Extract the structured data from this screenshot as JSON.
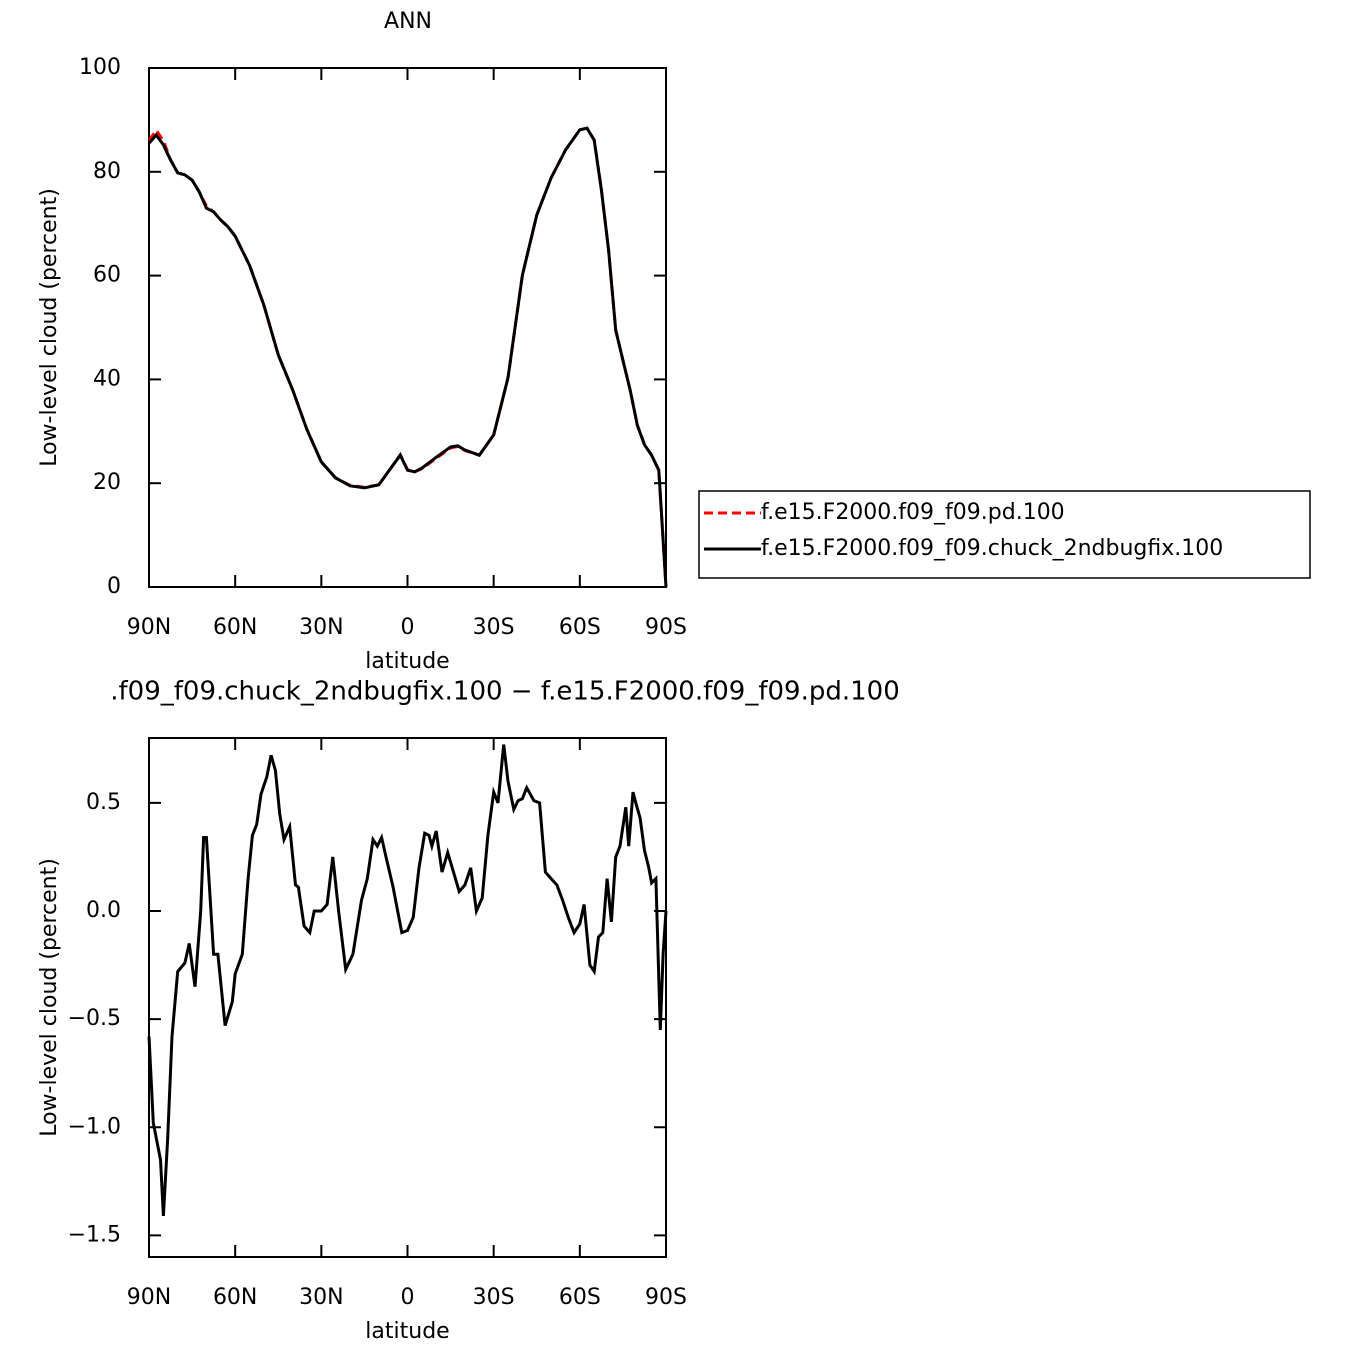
{
  "chart_data": [
    {
      "type": "line",
      "title": "ANN",
      "xlabel": "latitude",
      "ylabel": "Low-level cloud (percent)",
      "xlim": [
        90,
        -90
      ],
      "ylim": [
        0,
        100
      ],
      "xticks": [
        {
          "value": 90,
          "label": "90N"
        },
        {
          "value": 60,
          "label": "60N"
        },
        {
          "value": 30,
          "label": "30N"
        },
        0,
        {
          "value": -30,
          "label": "30S"
        },
        {
          "value": -60,
          "label": "60S"
        },
        {
          "value": -90,
          "label": "90S"
        }
      ],
      "yticks": [
        0,
        20,
        40,
        60,
        80,
        100
      ],
      "legend": "outside-right",
      "x": [
        90,
        87.5,
        85,
        82.5,
        80,
        77.5,
        75,
        72.5,
        70,
        67.5,
        65,
        62.5,
        60,
        55,
        50,
        45,
        40,
        35,
        30,
        25,
        20,
        15,
        10,
        5,
        2.5,
        0,
        -2.5,
        -5,
        -10,
        -15,
        -17.5,
        -20,
        -25,
        -30,
        -35,
        -40,
        -45,
        -50,
        -55,
        -60,
        -62.5,
        -65,
        -67.5,
        -70,
        -72.5,
        -75,
        -77.5,
        -80,
        -82.5,
        -85,
        -87.5,
        -90
      ],
      "series": [
        {
          "name": "f.e15.F2000.f09_f09.pd.100",
          "color": "#ff0000",
          "dash": true,
          "values": [
            86,
            88,
            86,
            82.3,
            79.8,
            79.4,
            78.4,
            76.1,
            73.4,
            72.3,
            70.7,
            69.4,
            67.6,
            62,
            54.3,
            44.7,
            38,
            30.3,
            24.1,
            21,
            19.6,
            19.2,
            19.7,
            23.5,
            25.5,
            22.6,
            22.2,
            22.8,
            24.8,
            26.8,
            27.1,
            26.3,
            25.4,
            29.3,
            40.3,
            60.1,
            71.7,
            78.8,
            84.2,
            88.1,
            88.4,
            86.1,
            76.5,
            64.9,
            49.5,
            43.7,
            38,
            31.2,
            27.4,
            25.4,
            22.5,
            0
          ]
        },
        {
          "name": "f.e15.F2000.f09_f09.chuck_2ndbugfix.100",
          "color": "#000000",
          "dash": false,
          "values": [
            85.5,
            87.1,
            85.2,
            82.3,
            79.8,
            79.4,
            78.4,
            76.1,
            73,
            72.3,
            70.7,
            69.4,
            67.6,
            62,
            54.3,
            44.7,
            38,
            30.3,
            24.1,
            21,
            19.5,
            19.1,
            19.7,
            23.5,
            25.4,
            22.5,
            22.2,
            22.9,
            25,
            27,
            27.2,
            26.4,
            25.4,
            29.3,
            40.3,
            60.1,
            71.7,
            78.8,
            84.2,
            88.1,
            88.4,
            86.1,
            76.5,
            64.9,
            49.5,
            43.7,
            38,
            31.2,
            27.4,
            25.4,
            22.5,
            0
          ]
        }
      ]
    },
    {
      "type": "line",
      "title": ".f09_f09.chuck_2ndbugfix.100 − f.e15.F2000.f09_f09.pd.100",
      "xlabel": "latitude",
      "ylabel": "Low-level cloud (percent)",
      "xlim": [
        90,
        -90
      ],
      "ylim": [
        -1.6,
        0.8
      ],
      "xticks": [
        {
          "value": 90,
          "label": "90N"
        },
        {
          "value": 60,
          "label": "60N"
        },
        {
          "value": 30,
          "label": "30N"
        },
        0,
        {
          "value": -30,
          "label": "30S"
        },
        {
          "value": -60,
          "label": "60S"
        },
        {
          "value": -90,
          "label": "90S"
        }
      ],
      "yticks": [
        {
          "value": -1.5,
          "label": "−1.5"
        },
        {
          "value": -1.0,
          "label": "−1.0"
        },
        {
          "value": -0.5,
          "label": "−0.5"
        },
        {
          "value": 0,
          "label": "0.0"
        },
        0.5
      ],
      "x": [
        90,
        88.5,
        86,
        85,
        83.5,
        82,
        80,
        77.5,
        76,
        74,
        72,
        71,
        70,
        67.5,
        66,
        63.5,
        61,
        60,
        57.5,
        55.5,
        54,
        52.5,
        51,
        49,
        47.5,
        46,
        44.5,
        43,
        41,
        39,
        38,
        36,
        34,
        32.5,
        30,
        28,
        26,
        24,
        21.5,
        19,
        16,
        14,
        12,
        10.5,
        9,
        7.5,
        5,
        3,
        2,
        0,
        -2,
        -4,
        -6,
        -7.5,
        -8.5,
        -10,
        -12,
        -14,
        -16,
        -18,
        -20,
        -22,
        -24,
        -26,
        -28,
        -30,
        -31.5,
        -33.5,
        -35,
        -37,
        -38.5,
        -40,
        -41.5,
        -44,
        -46,
        -48,
        -50,
        -52,
        -54,
        -56,
        -58,
        -60,
        -61.5,
        -63.5,
        -65,
        -66.5,
        -68,
        -69.5,
        -71,
        -72.5,
        -74,
        -76,
        -77,
        -78.5,
        -79.5,
        -81,
        -82.5,
        -84,
        -85,
        -86.5,
        -88,
        -89,
        -90
      ],
      "series": [
        {
          "color": "#000000",
          "dash": false,
          "values": [
            -0.58,
            -0.98,
            -1.15,
            -1.41,
            -1.05,
            -0.58,
            -0.28,
            -0.24,
            -0.15,
            -0.35,
            0,
            0.34,
            0.34,
            -0.2,
            -0.2,
            -0.53,
            -0.42,
            -0.29,
            -0.2,
            0.15,
            0.35,
            0.4,
            0.54,
            0.62,
            0.72,
            0.65,
            0.45,
            0.33,
            0.39,
            0.12,
            0.11,
            -0.07,
            -0.1,
            0,
            0,
            0.03,
            0.25,
            0,
            -0.27,
            -0.2,
            0.05,
            0.15,
            0.33,
            0.3,
            0.34,
            0.25,
            0.11,
            -0.03,
            -0.1,
            -0.09,
            -0.03,
            0.2,
            0.36,
            0.35,
            0.3,
            0.37,
            0.18,
            0.27,
            0.18,
            0.09,
            0.12,
            0.2,
            0,
            0.06,
            0.35,
            0.55,
            0.5,
            0.77,
            0.6,
            0.47,
            0.51,
            0.52,
            0.57,
            0.51,
            0.5,
            0.18,
            0.15,
            0.12,
            0.05,
            -0.03,
            -0.1,
            -0.06,
            0.03,
            -0.25,
            -0.28,
            -0.12,
            -0.1,
            0.15,
            -0.05,
            0.25,
            0.3,
            0.48,
            0.3,
            0.55,
            0.5,
            0.43,
            0.28,
            0.2,
            0.13,
            0.15,
            -0.55,
            -0.2,
            0
          ]
        }
      ]
    }
  ]
}
